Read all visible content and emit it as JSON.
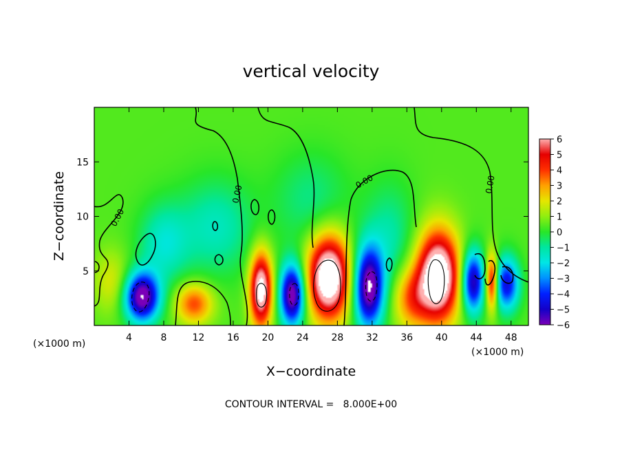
{
  "chart_data": {
    "type": "heatmap",
    "title": "vertical velocity",
    "xlabel": "X−coordinate",
    "ylabel": "Z−coordinate",
    "x_unit_left": "(×1000 m)",
    "x_unit_right": "(×1000 m)",
    "xlim": [
      0,
      50
    ],
    "ylim": [
      0,
      20
    ],
    "x_ticks": [
      4,
      8,
      12,
      16,
      20,
      24,
      28,
      32,
      36,
      40,
      44,
      48
    ],
    "y_ticks": [
      5,
      10,
      15
    ],
    "colorbar": {
      "min": -6,
      "max": 6,
      "tick_labels": [
        "6",
        "5",
        "4",
        "3",
        "2",
        "1",
        "0",
        "−1",
        "−2",
        "−3",
        "−4",
        "−5",
        "−6"
      ],
      "stops": [
        {
          "v": -6,
          "c": "#7a00b8"
        },
        {
          "v": -5,
          "c": "#1400c8"
        },
        {
          "v": -4,
          "c": "#0020ff"
        },
        {
          "v": -3,
          "c": "#0090ff"
        },
        {
          "v": -2,
          "c": "#00e6e6"
        },
        {
          "v": -1,
          "c": "#00e6a0"
        },
        {
          "v": 0,
          "c": "#28e628"
        },
        {
          "v": 1,
          "c": "#90ee10"
        },
        {
          "v": 2,
          "c": "#e6e600"
        },
        {
          "v": 3,
          "c": "#ffa000"
        },
        {
          "v": 4,
          "c": "#ff3000"
        },
        {
          "v": 5,
          "c": "#e60000"
        },
        {
          "v": 6,
          "c": "#ffb0b0"
        }
      ]
    },
    "cells": [
      {
        "x": 5.5,
        "z": 2.6,
        "v": -7,
        "sx": 1.4,
        "sz": 1.6
      },
      {
        "x": 11.5,
        "z": 2.0,
        "v": 3.5,
        "sx": 1.5,
        "sz": 1.3
      },
      {
        "x": 19.2,
        "z": 3.3,
        "v": 7,
        "sx": 0.9,
        "sz": 2.4
      },
      {
        "x": 22.8,
        "z": 2.8,
        "v": -7,
        "sx": 1.0,
        "sz": 2.0
      },
      {
        "x": 27.0,
        "z": 4.4,
        "v": 8,
        "sx": 1.7,
        "sz": 2.7
      },
      {
        "x": 31.6,
        "z": 3.5,
        "v": -7,
        "sx": 1.2,
        "sz": 2.6
      },
      {
        "x": 39.6,
        "z": 4.5,
        "v": 8,
        "sx": 1.7,
        "sz": 2.9
      },
      {
        "x": 43.6,
        "z": 4.0,
        "v": -6,
        "sx": 0.9,
        "sz": 2.0
      },
      {
        "x": 45.8,
        "z": 4.0,
        "v": 5,
        "sx": 0.5,
        "sz": 1.8
      },
      {
        "x": 47.5,
        "z": 3.8,
        "v": -5,
        "sx": 1.0,
        "sz": 1.7
      },
      {
        "x": 36.5,
        "z": 2.5,
        "v": 3,
        "sx": 1.5,
        "sz": 2.0
      },
      {
        "x": 14.0,
        "z": 9.0,
        "v": -1.8,
        "sx": 3.0,
        "sz": 3.0
      },
      {
        "x": 25.0,
        "z": 11.5,
        "v": -1.2,
        "sx": 3.0,
        "sz": 3.0
      },
      {
        "x": 8.0,
        "z": 7.5,
        "v": -2.0,
        "sx": 2.0,
        "sz": 2.5
      },
      {
        "x": 34.0,
        "z": 8.0,
        "v": -1.5,
        "sx": 2.0,
        "sz": 3.5
      },
      {
        "x": 2.0,
        "z": 4.0,
        "v": 1.5,
        "sx": 1.5,
        "sz": 2.0
      }
    ],
    "contour_labels": [
      "0.00",
      "0.00",
      "0.00",
      "0.00"
    ],
    "contour_interval_text": "CONTOUR INTERVAL =   8.000E+00"
  }
}
